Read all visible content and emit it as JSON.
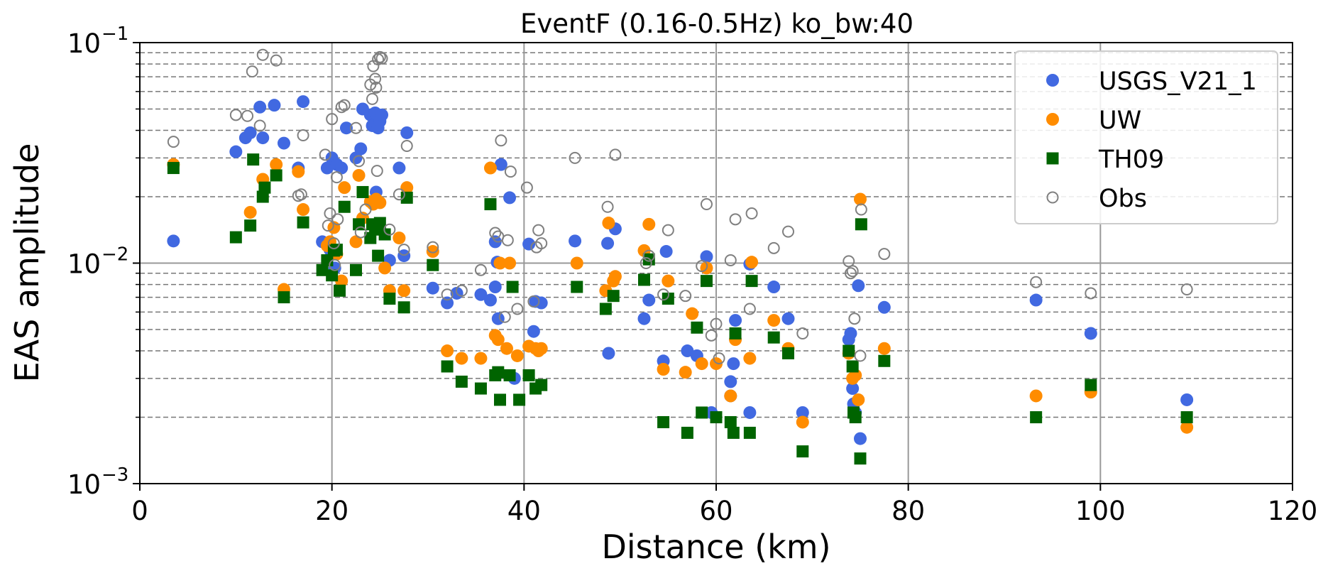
{
  "chart_data": {
    "type": "scatter",
    "title": "EventF (0.16-0.5Hz) ko_bw:40",
    "xlabel": "Distance (km)",
    "ylabel": "EAS amplitude",
    "xlim": [
      0,
      120
    ],
    "ylim": [
      0.001,
      0.1
    ],
    "yscale": "log",
    "xticks": [
      0,
      20,
      40,
      60,
      80,
      100,
      120
    ],
    "xtick_labels": [
      "0",
      "20",
      "40",
      "60",
      "80",
      "100",
      "120"
    ],
    "ytick_labels": [
      {
        "base": "10",
        "exp": "−3",
        "value": 0.001
      },
      {
        "base": "10",
        "exp": "−2",
        "value": 0.01
      },
      {
        "base": "10",
        "exp": "−1",
        "value": 0.1
      }
    ],
    "grid": true,
    "legend_position": "top-right",
    "series": [
      {
        "name": "USGS_V21_1",
        "marker": "circle-filled",
        "color": "#4169e1",
        "points": [
          [
            3.5,
            0.0126
          ],
          [
            10,
            0.032
          ],
          [
            11,
            0.037
          ],
          [
            11.5,
            0.039
          ],
          [
            12.5,
            0.051
          ],
          [
            12.8,
            0.037
          ],
          [
            14,
            0.052
          ],
          [
            15,
            0.035
          ],
          [
            16.5,
            0.027
          ],
          [
            17,
            0.054
          ],
          [
            19,
            0.0125
          ],
          [
            19.5,
            0.027
          ],
          [
            20,
            0.03
          ],
          [
            20.5,
            0.028
          ],
          [
            21,
            0.027
          ],
          [
            19.8,
            0.0115
          ],
          [
            20.3,
            0.0095
          ],
          [
            21.5,
            0.041
          ],
          [
            22.5,
            0.03
          ],
          [
            23,
            0.033
          ],
          [
            23.2,
            0.05
          ],
          [
            24,
            0.047
          ],
          [
            24.2,
            0.042
          ],
          [
            24.5,
            0.048
          ],
          [
            24.8,
            0.041
          ],
          [
            25,
            0.044
          ],
          [
            25.2,
            0.047
          ],
          [
            24.6,
            0.021
          ],
          [
            27,
            0.027
          ],
          [
            27.8,
            0.039
          ],
          [
            26,
            0.0103
          ],
          [
            27.5,
            0.0108
          ],
          [
            30.5,
            0.0077
          ],
          [
            32,
            0.0066
          ],
          [
            33,
            0.0073
          ],
          [
            35.5,
            0.0072
          ],
          [
            36.5,
            0.0068
          ],
          [
            37,
            0.0125
          ],
          [
            37.2,
            0.0101
          ],
          [
            37,
            0.0078
          ],
          [
            37.3,
            0.0056
          ],
          [
            37.6,
            0.028
          ],
          [
            38.5,
            0.0198
          ],
          [
            39,
            0.003
          ],
          [
            40.5,
            0.0122
          ],
          [
            41,
            0.0049
          ],
          [
            41.2,
            0.0067
          ],
          [
            41.8,
            0.0066
          ],
          [
            45.3,
            0.0126
          ],
          [
            48.7,
            0.0123
          ],
          [
            49.5,
            0.0143
          ],
          [
            48.8,
            0.0039
          ],
          [
            53,
            0.0068
          ],
          [
            52.5,
            0.0056
          ],
          [
            54.5,
            0.0036
          ],
          [
            54.8,
            0.0113
          ],
          [
            57,
            0.004
          ],
          [
            58,
            0.0038
          ],
          [
            59,
            0.0107
          ],
          [
            59.5,
            0.0021
          ],
          [
            61.5,
            0.0029
          ],
          [
            61.5,
            0.0025
          ],
          [
            61.8,
            0.0035
          ],
          [
            62,
            0.0055
          ],
          [
            63.5,
            0.0021
          ],
          [
            63.5,
            0.0099
          ],
          [
            66,
            0.0078
          ],
          [
            67.5,
            0.0056
          ],
          [
            69,
            0.0021
          ],
          [
            73.8,
            0.0045
          ],
          [
            74,
            0.0048
          ],
          [
            74.2,
            0.0027
          ],
          [
            74.3,
            0.0023
          ],
          [
            74.5,
            0.0021
          ],
          [
            75,
            0.0016
          ],
          [
            74.8,
            0.0079
          ],
          [
            77.5,
            0.0063
          ],
          [
            93.3,
            0.0068
          ],
          [
            99,
            0.0048
          ],
          [
            109,
            0.0024
          ]
        ]
      },
      {
        "name": "UW",
        "marker": "circle-filled",
        "color": "#ff8c00",
        "points": [
          [
            3.5,
            0.028
          ],
          [
            11.5,
            0.017
          ],
          [
            12.8,
            0.024
          ],
          [
            14.2,
            0.028
          ],
          [
            15,
            0.0076
          ],
          [
            16.5,
            0.026
          ],
          [
            17,
            0.0175
          ],
          [
            19.5,
            0.012
          ],
          [
            19.8,
            0.0125
          ],
          [
            20.2,
            0.0145
          ],
          [
            20.5,
            0.011
          ],
          [
            21,
            0.0083
          ],
          [
            21.3,
            0.022
          ],
          [
            22.5,
            0.0125
          ],
          [
            22.8,
            0.025
          ],
          [
            23.2,
            0.016
          ],
          [
            24,
            0.019
          ],
          [
            24.3,
            0.0185
          ],
          [
            24.6,
            0.0195
          ],
          [
            25,
            0.0188
          ],
          [
            25.5,
            0.0095
          ],
          [
            26,
            0.0075
          ],
          [
            27,
            0.013
          ],
          [
            27.5,
            0.0075
          ],
          [
            27.8,
            0.022
          ],
          [
            30.5,
            0.0113
          ],
          [
            32,
            0.004
          ],
          [
            33.5,
            0.0037
          ],
          [
            35.5,
            0.0037
          ],
          [
            36.5,
            0.027
          ],
          [
            37,
            0.0047
          ],
          [
            37.3,
            0.0045
          ],
          [
            37.5,
            0.01
          ],
          [
            38.2,
            0.0041
          ],
          [
            38.5,
            0.01
          ],
          [
            39.3,
            0.0038
          ],
          [
            40.5,
            0.0042
          ],
          [
            41.2,
            0.0041
          ],
          [
            41.5,
            0.004
          ],
          [
            41.8,
            0.0041
          ],
          [
            45.5,
            0.01
          ],
          [
            48.5,
            0.0075
          ],
          [
            48.8,
            0.0152
          ],
          [
            49.3,
            0.0083
          ],
          [
            49.5,
            0.0087
          ],
          [
            52.5,
            0.0114
          ],
          [
            53,
            0.015
          ],
          [
            54.5,
            0.0033
          ],
          [
            55,
            0.0083
          ],
          [
            56.8,
            0.0032
          ],
          [
            57.5,
            0.0059
          ],
          [
            58.5,
            0.0035
          ],
          [
            59,
            0.0095
          ],
          [
            60,
            0.0035
          ],
          [
            61.5,
            0.0025
          ],
          [
            62,
            0.0045
          ],
          [
            63.5,
            0.0037
          ],
          [
            63.7,
            0.0101
          ],
          [
            66,
            0.0055
          ],
          [
            67.5,
            0.0041
          ],
          [
            69,
            0.0019
          ],
          [
            73.8,
            0.0039
          ],
          [
            74.2,
            0.003
          ],
          [
            74.5,
            0.0031
          ],
          [
            74.8,
            0.0024
          ],
          [
            75,
            0.0195
          ],
          [
            77.5,
            0.0041
          ],
          [
            93.3,
            0.0025
          ],
          [
            99,
            0.0026
          ],
          [
            109,
            0.0018
          ]
        ]
      },
      {
        "name": "TH09",
        "marker": "square-filled",
        "color": "#006400",
        "points": [
          [
            3.5,
            0.027
          ],
          [
            10,
            0.0131
          ],
          [
            11.5,
            0.0148
          ],
          [
            11.8,
            0.0295
          ],
          [
            12.8,
            0.02
          ],
          [
            13,
            0.022
          ],
          [
            14.2,
            0.025
          ],
          [
            15,
            0.007
          ],
          [
            17,
            0.0153
          ],
          [
            19,
            0.0093
          ],
          [
            19.5,
            0.0103
          ],
          [
            20,
            0.0088
          ],
          [
            20.2,
            0.0114
          ],
          [
            20.5,
            0.0115
          ],
          [
            20.8,
            0.0075
          ],
          [
            21.3,
            0.018
          ],
          [
            22.5,
            0.0093
          ],
          [
            22.8,
            0.015
          ],
          [
            23.2,
            0.021
          ],
          [
            24,
            0.013
          ],
          [
            24.2,
            0.015
          ],
          [
            24.5,
            0.0142
          ],
          [
            24.8,
            0.0108
          ],
          [
            25,
            0.0152
          ],
          [
            25.5,
            0.0135
          ],
          [
            26,
            0.0069
          ],
          [
            27.5,
            0.0063
          ],
          [
            27.8,
            0.0198
          ],
          [
            30.5,
            0.0098
          ],
          [
            32,
            0.0034
          ],
          [
            33.5,
            0.0029
          ],
          [
            35.5,
            0.0027
          ],
          [
            36.5,
            0.0185
          ],
          [
            37,
            0.0031
          ],
          [
            37.3,
            0.0032
          ],
          [
            37.5,
            0.0024
          ],
          [
            38.5,
            0.0031
          ],
          [
            38.8,
            0.0078
          ],
          [
            39.5,
            0.0024
          ],
          [
            40.5,
            0.0031
          ],
          [
            41.2,
            0.0027
          ],
          [
            41.8,
            0.0028
          ],
          [
            45.5,
            0.0078
          ],
          [
            48.5,
            0.0062
          ],
          [
            49.3,
            0.0071
          ],
          [
            52.5,
            0.0084
          ],
          [
            53,
            0.0104
          ],
          [
            54.5,
            0.0019
          ],
          [
            55,
            0.0069
          ],
          [
            57,
            0.0017
          ],
          [
            58,
            0.0051
          ],
          [
            58.5,
            0.0021
          ],
          [
            59,
            0.0083
          ],
          [
            60,
            0.002
          ],
          [
            61.5,
            0.0019
          ],
          [
            61.8,
            0.0017
          ],
          [
            62,
            0.0048
          ],
          [
            63.5,
            0.0017
          ],
          [
            63.7,
            0.0083
          ],
          [
            66,
            0.0046
          ],
          [
            67.5,
            0.0039
          ],
          [
            69,
            0.0014
          ],
          [
            73.8,
            0.004
          ],
          [
            74.2,
            0.0034
          ],
          [
            74.3,
            0.0021
          ],
          [
            74.5,
            0.002
          ],
          [
            75,
            0.0013
          ],
          [
            75.1,
            0.015
          ],
          [
            77.5,
            0.0036
          ],
          [
            93.3,
            0.002
          ],
          [
            99,
            0.0028
          ],
          [
            109,
            0.002
          ]
        ]
      },
      {
        "name": "Obs",
        "marker": "circle-open",
        "color": "#808080",
        "points": [
          [
            3.5,
            0.0355
          ],
          [
            10,
            0.047
          ],
          [
            11.2,
            0.0465
          ],
          [
            11.7,
            0.074
          ],
          [
            12.5,
            0.042
          ],
          [
            12.8,
            0.088
          ],
          [
            14.2,
            0.083
          ],
          [
            16.5,
            0.0202
          ],
          [
            16.8,
            0.0205
          ],
          [
            17,
            0.038
          ],
          [
            19.3,
            0.031
          ],
          [
            19.6,
            0.0148
          ],
          [
            19.8,
            0.0168
          ],
          [
            20,
            0.045
          ],
          [
            20.2,
            0.0123
          ],
          [
            20.3,
            0.0098
          ],
          [
            20.5,
            0.0245
          ],
          [
            20.6,
            0.0158
          ],
          [
            21,
            0.051
          ],
          [
            21.3,
            0.052
          ],
          [
            22.5,
            0.041
          ],
          [
            22.8,
            0.029
          ],
          [
            23,
            0.0138
          ],
          [
            23.5,
            0.0175
          ],
          [
            24,
            0.0645
          ],
          [
            24.2,
            0.0555
          ],
          [
            24.3,
            0.0782
          ],
          [
            24.5,
            0.0685
          ],
          [
            24.6,
            0.0625
          ],
          [
            24.8,
            0.084
          ],
          [
            25,
            0.086
          ],
          [
            25.2,
            0.0848
          ],
          [
            24.7,
            0.0262
          ],
          [
            26,
            0.0142
          ],
          [
            27,
            0.0205
          ],
          [
            27.5,
            0.0115
          ],
          [
            27.8,
            0.034
          ],
          [
            30.5,
            0.0118
          ],
          [
            32,
            0.0072
          ],
          [
            33.5,
            0.0075
          ],
          [
            35.5,
            0.0093
          ],
          [
            37,
            0.0137
          ],
          [
            37.3,
            0.0132
          ],
          [
            37.6,
            0.036
          ],
          [
            38,
            0.0057
          ],
          [
            38.3,
            0.0127
          ],
          [
            38.6,
            0.026
          ],
          [
            39.3,
            0.0062
          ],
          [
            40.3,
            0.022
          ],
          [
            41,
            0.0067
          ],
          [
            41.3,
            0.0118
          ],
          [
            41.5,
            0.0141
          ],
          [
            41.8,
            0.0123
          ],
          [
            45.3,
            0.03
          ],
          [
            48.7,
            0.018
          ],
          [
            49.5,
            0.031
          ],
          [
            52.7,
            0.01
          ],
          [
            53,
            0.0108
          ],
          [
            54.5,
            0.0072
          ],
          [
            55,
            0.0141
          ],
          [
            56.8,
            0.0071
          ],
          [
            58.5,
            0.0097
          ],
          [
            59,
            0.0185
          ],
          [
            59.5,
            0.0047
          ],
          [
            60,
            0.0053
          ],
          [
            60.3,
            0.0037
          ],
          [
            61.5,
            0.0103
          ],
          [
            62,
            0.0158
          ],
          [
            63.5,
            0.0062
          ],
          [
            63.7,
            0.0168
          ],
          [
            66,
            0.0117
          ],
          [
            67.5,
            0.0139
          ],
          [
            69,
            0.0048
          ],
          [
            73.8,
            0.0102
          ],
          [
            74,
            0.009
          ],
          [
            74.2,
            0.0092
          ],
          [
            74.4,
            0.0056
          ],
          [
            75,
            0.0038
          ],
          [
            75.1,
            0.0175
          ],
          [
            77.5,
            0.011
          ],
          [
            93.3,
            0.0082
          ],
          [
            99,
            0.0073
          ],
          [
            109,
            0.0076
          ]
        ]
      }
    ]
  }
}
